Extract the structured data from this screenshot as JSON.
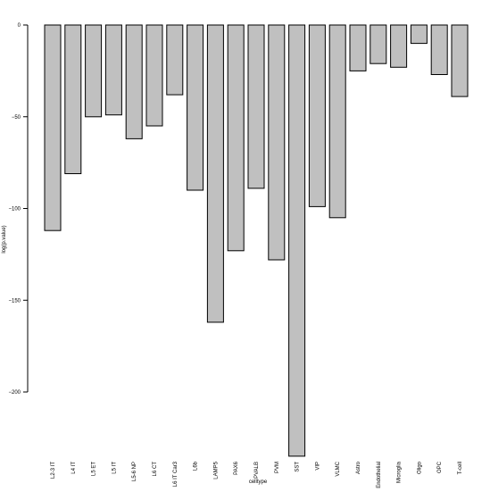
{
  "chart_data": {
    "type": "bar",
    "title": "",
    "xlabel": "celltype",
    "ylabel": "log(p.value)",
    "ylim": [
      -235,
      0
    ],
    "yticks": [
      0,
      -50,
      -100,
      -150,
      -200
    ],
    "grid": false,
    "bar_color": "#c0c0c0",
    "categories": [
      "L2-3 IT",
      "L4 IT",
      "L5 ET",
      "L5 IT",
      "L5-6 NP",
      "L6 CT",
      "L6 IT Car3",
      "L6b",
      "LAMP5",
      "PAX6",
      "PVALB",
      "PVM",
      "SST",
      "VIP",
      "VLMC",
      "Astro",
      "Endothelial",
      "Microglia",
      "Oligo",
      "OPC",
      "T-cell"
    ],
    "values": [
      -112,
      -81,
      -50,
      -49,
      -62,
      -55,
      -38,
      -90,
      -162,
      -123,
      -89,
      -128,
      -235,
      -99,
      -105,
      -25,
      -21,
      -23,
      -10,
      -27,
      -39
    ]
  }
}
